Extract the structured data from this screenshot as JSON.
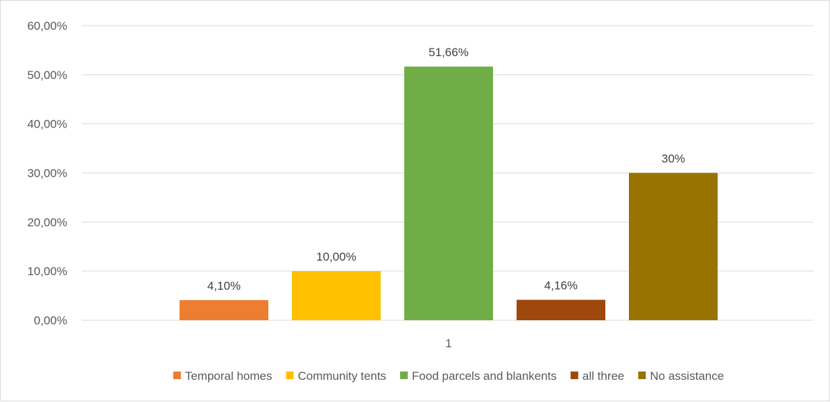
{
  "chart_data": {
    "type": "bar",
    "categories": [
      "1"
    ],
    "series": [
      {
        "name": "Temporal homes",
        "values": [
          4.1
        ],
        "label": "4,10%",
        "color": "#ED7D31"
      },
      {
        "name": "Community tents",
        "values": [
          10.0
        ],
        "label": "10,00%",
        "color": "#FFC000"
      },
      {
        "name": "Food parcels and blankents",
        "values": [
          51.66
        ],
        "label": "51,66%",
        "color": "#70AD47"
      },
      {
        "name": "all three",
        "values": [
          4.16
        ],
        "label": "4,16%",
        "color": "#9E480E"
      },
      {
        "name": "No assistance",
        "values": [
          30
        ],
        "label": "30%",
        "color": "#997300"
      }
    ],
    "y_ticks": [
      "0,00%",
      "10,00%",
      "20,00%",
      "30,00%",
      "40,00%",
      "50,00%",
      "60,00%"
    ],
    "ylim": [
      0,
      60
    ],
    "title": "",
    "xlabel": "",
    "ylabel": "",
    "grid": true,
    "legend_position": "bottom"
  }
}
